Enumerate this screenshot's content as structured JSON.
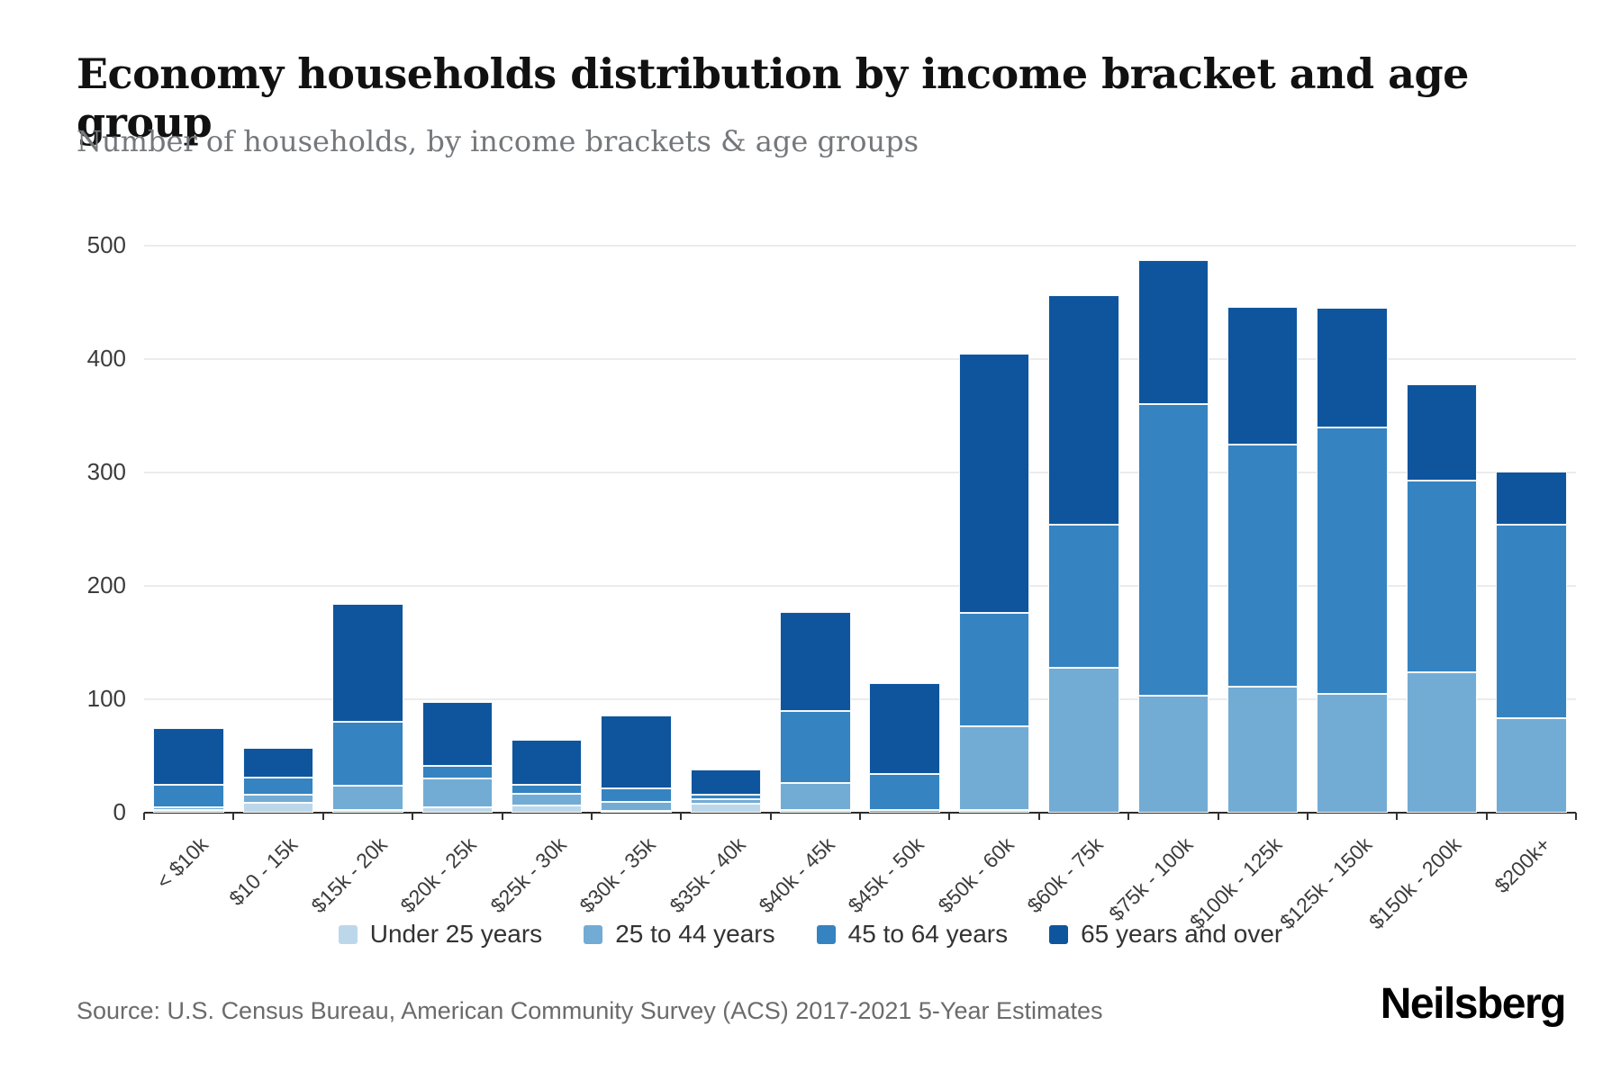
{
  "header": {
    "title": "Economy households distribution by income bracket and age group",
    "subtitle": "Number of households, by income brackets & age groups"
  },
  "source": {
    "text": "Source: U.S. Census Bureau, American Community Survey (ACS) 2017-2021 5-Year Estimates"
  },
  "branding": {
    "logo_text": "Neilsberg"
  },
  "chart_data": {
    "type": "bar",
    "stacked": true,
    "title": "Economy households distribution by income bracket and age group",
    "subtitle": "Number of households, by income brackets & age groups",
    "xlabel": "",
    "ylabel": "",
    "ylim": [
      0,
      500
    ],
    "yticks": [
      0,
      100,
      200,
      300,
      400,
      500
    ],
    "grid": true,
    "legend_position": "bottom-center",
    "categories": [
      "< $10k",
      "$10 - 15k",
      "$15k - 20k",
      "$20k - 25k",
      "$25k - 30k",
      "$30k - 35k",
      "$35k - 40k",
      "$40k - 45k",
      "$45k - 50k",
      "$50k - 60k",
      "$60k - 75k",
      "$75k - 100k",
      "$100k - 125k",
      "$125k - 150k",
      "$150k - 200k",
      "$200k+"
    ],
    "series": [
      {
        "name": "Under 25 years",
        "color": "#bdd7ea",
        "values": [
          2,
          9,
          2,
          5,
          6,
          1,
          8,
          2,
          0,
          2,
          0,
          0,
          0,
          0,
          0,
          0
        ]
      },
      {
        "name": "25 to 44 years",
        "color": "#72acd5",
        "values": [
          3,
          7,
          22,
          25,
          11,
          8,
          4,
          24,
          2,
          74,
          128,
          103,
          111,
          105,
          124,
          83
        ]
      },
      {
        "name": "45 to 64 years",
        "color": "#3583c1",
        "values": [
          20,
          15,
          56,
          11,
          8,
          12,
          4,
          64,
          32,
          100,
          126,
          257,
          214,
          235,
          169,
          171
        ]
      },
      {
        "name": "65 years and over",
        "color": "#0e559e",
        "values": [
          50,
          26,
          104,
          57,
          39,
          64,
          22,
          87,
          80,
          229,
          202,
          127,
          121,
          105,
          85,
          47
        ]
      }
    ],
    "totals": [
      75,
      57,
      184,
      98,
      64,
      85,
      38,
      177,
      114,
      405,
      456,
      487,
      446,
      445,
      378,
      301
    ]
  }
}
